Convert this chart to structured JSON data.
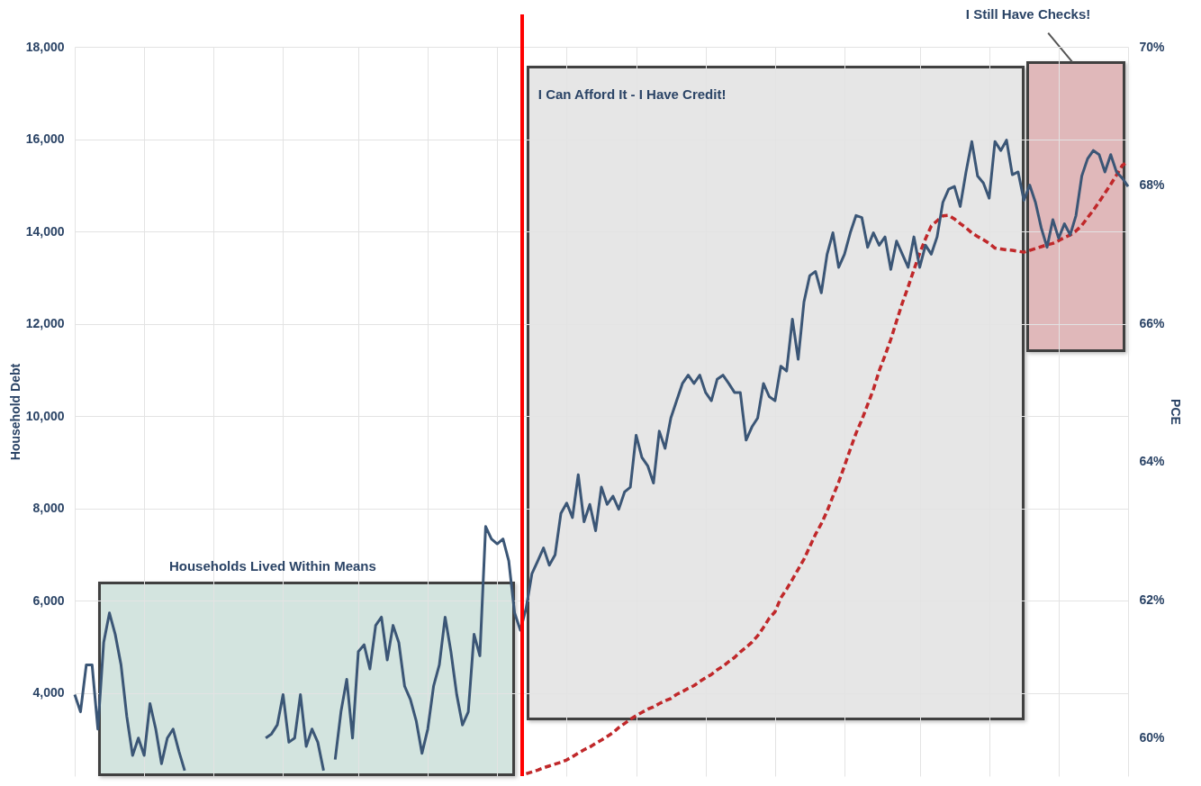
{
  "chart_data": {
    "type": "line",
    "ylabel": "Household Debt",
    "y2label": "PCE",
    "annotations": [
      "Households Lived Within Means",
      "I Can Afford It - I Have Credit!",
      "I Still Have Checks!"
    ],
    "categories": [
      null,
      null,
      null,
      null,
      null,
      null,
      null,
      null,
      null,
      null,
      null,
      null,
      null,
      null,
      null,
      null,
      null,
      null,
      null,
      null,
      null,
      null,
      null,
      null,
      null,
      null,
      null,
      null,
      null,
      null,
      null,
      null,
      null,
      null,
      null,
      null,
      null,
      null,
      null,
      null,
      null,
      null,
      null,
      null,
      null,
      null,
      null,
      null,
      null,
      null,
      null,
      null,
      null,
      null,
      null,
      null,
      null,
      null,
      null,
      null,
      null,
      null,
      null,
      null,
      null,
      null,
      null,
      null,
      null,
      null,
      null,
      null,
      null,
      null,
      null,
      null,
      null,
      null,
      null,
      null,
      null,
      null,
      null,
      null,
      null,
      null,
      null,
      null,
      null,
      null,
      null,
      null,
      null,
      null,
      null,
      null,
      null,
      null,
      null,
      null,
      null,
      null,
      null,
      null,
      null,
      null,
      null,
      null,
      null,
      null,
      null,
      null,
      null,
      null,
      null,
      null,
      null,
      null,
      null,
      null,
      null,
      null,
      null,
      null,
      null,
      null,
      null,
      null,
      null,
      null,
      null,
      null,
      null,
      null,
      null,
      null,
      null,
      null,
      null,
      null,
      null,
      null,
      null,
      null,
      null,
      null,
      null,
      null,
      null,
      null,
      null,
      null,
      null,
      null,
      null,
      null,
      null,
      null,
      null,
      null,
      null,
      null,
      null,
      null,
      null,
      null,
      null,
      null,
      null,
      null,
      null,
      null,
      null,
      null,
      null,
      null,
      null,
      null,
      null,
      null,
      null,
      null,
      null
    ],
    "ylim": [
      2200,
      18000
    ],
    "yticks": [
      {
        "value": 4000,
        "label": "4,000"
      },
      {
        "value": 6000,
        "label": "6,000"
      },
      {
        "value": 8000,
        "label": "8,000"
      },
      {
        "value": 10000,
        "label": "10,000"
      },
      {
        "value": 12000,
        "label": "12,000"
      },
      {
        "value": 14000,
        "label": "14,000"
      },
      {
        "value": 16000,
        "label": "16,000"
      },
      {
        "value": 18000,
        "label": "18,000"
      }
    ],
    "y2lim": [
      59.45,
      70
    ],
    "y2ticks": [
      {
        "value": 60,
        "label": "60%"
      },
      {
        "value": 62,
        "label": "62%"
      },
      {
        "value": 64,
        "label": "64%"
      },
      {
        "value": 66,
        "label": "66%"
      },
      {
        "value": 68,
        "label": "68%"
      },
      {
        "value": 70,
        "label": "70%"
      }
    ],
    "grid": true,
    "tick_labels": "y",
    "marker": "none",
    "series": [
      {
        "color": "#c0282a",
        "line_style": "dashed",
        "values": [
          null,
          null,
          null,
          null,
          null,
          null,
          null,
          null,
          null,
          null,
          null,
          null,
          null,
          null,
          null,
          null,
          null,
          null,
          null,
          null,
          null,
          null,
          null,
          null,
          null,
          null,
          null,
          null,
          null,
          null,
          null,
          null,
          null,
          null,
          null,
          null,
          null,
          null,
          null,
          null,
          null,
          null,
          null,
          null,
          null,
          null,
          null,
          null,
          null,
          null,
          null,
          null,
          null,
          null,
          null,
          null,
          null,
          null,
          null,
          null,
          null,
          null,
          null,
          null,
          null,
          null,
          null,
          null,
          null,
          null,
          null,
          null,
          null,
          null,
          null,
          null,
          null,
          null,
          2250,
          2290,
          2330,
          2380,
          2420,
          2460,
          2500,
          2550,
          2620,
          2700,
          2770,
          2830,
          2910,
          2980,
          3060,
          3140,
          3250,
          3340,
          3430,
          3510,
          3580,
          3650,
          3700,
          3770,
          3830,
          3880,
          3970,
          4030,
          4100,
          4160,
          4250,
          4330,
          4400,
          4500,
          4580,
          4680,
          4770,
          4890,
          4990,
          5100,
          5240,
          5420,
          5620,
          5760,
          6060,
          6250,
          6460,
          6680,
          6900,
          7170,
          7440,
          7670,
          7940,
          8260,
          8570,
          8920,
          9280,
          9630,
          9920,
          10250,
          10580,
          10980,
          11310,
          11660,
          12060,
          12450,
          12800,
          13170,
          13530,
          13840,
          14120,
          14230,
          14340,
          14350,
          14270,
          14170,
          14080,
          13970,
          13890,
          13820,
          13740,
          13640,
          13620,
          13600,
          13590,
          13570,
          13550,
          13590,
          13630,
          13670,
          13710,
          13740,
          13800,
          13870,
          13920,
          14010,
          14130,
          14300,
          14460,
          14640,
          14830,
          15020,
          15220,
          15430,
          15520
        ]
      },
      {
        "axis": "y2",
        "color": "#3b5676",
        "line_style": "solid",
        "values": [
          60.63,
          60.38,
          61.06,
          61.06,
          60.13,
          61.38,
          61.81,
          61.5,
          61.06,
          60.31,
          59.75,
          60.0,
          59.75,
          60.5,
          60.13,
          59.63,
          60.0,
          60.13,
          59.81,
          59.53,
          null,
          null,
          null,
          null,
          null,
          null,
          null,
          null,
          null,
          null,
          null,
          null,
          null,
          null,
          null,
          null,
          null,
          null,
          null,
          null,
          null,
          null,
          null,
          null,
          null,
          null,
          null,
          null,
          null,
          null,
          null,
          null,
          null,
          null,
          null,
          null,
          null,
          null,
          null,
          null,
          null,
          null,
          null,
          null,
          null,
          null,
          null,
          null,
          null,
          null,
          null,
          null,
          null,
          null,
          null,
          null,
          null,
          null,
          null,
          null,
          null,
          null,
          null,
          null,
          null,
          null,
          null,
          null,
          null,
          null,
          null,
          null,
          null,
          null,
          null,
          null,
          null,
          null,
          null,
          null,
          null,
          null,
          null,
          null,
          null,
          null,
          null,
          null,
          null,
          null,
          null,
          null,
          null,
          null,
          null,
          null,
          null,
          null,
          null,
          null,
          null,
          null,
          null,
          null,
          null,
          null,
          null,
          null,
          null,
          null,
          null,
          null,
          null,
          null,
          null,
          null,
          null,
          null,
          null,
          null,
          null,
          null,
          null,
          null,
          null,
          null,
          null,
          null,
          null,
          null,
          null,
          null,
          null,
          null,
          null,
          null,
          null,
          null,
          null,
          null,
          null,
          null,
          null,
          null,
          null,
          null,
          null,
          null,
          null,
          null,
          null,
          null,
          null,
          null,
          null,
          null,
          null,
          null,
          null,
          null,
          null,
          null,
          null
        ]
      },
      {
        "axis": "y2",
        "color": "#3b5676",
        "line_style": "solid",
        "values": [
          null,
          null,
          null,
          null,
          null,
          null,
          null,
          null,
          null,
          null,
          null,
          null,
          null,
          null,
          null,
          null,
          null,
          null,
          null,
          null,
          null,
          null,
          null,
          null,
          null,
          null,
          null,
          null,
          null,
          null,
          null,
          null,
          null,
          60.0,
          60.06,
          60.19,
          60.63,
          59.94,
          60.0,
          60.63,
          59.88,
          60.13,
          59.94,
          59.53,
          null,
          null,
          null,
          null,
          null,
          null,
          null,
          null,
          null,
          null,
          null,
          null,
          null,
          null,
          null,
          null,
          null,
          null,
          null,
          null,
          null,
          null,
          null,
          null,
          null,
          null,
          null,
          null,
          null,
          null,
          null,
          null,
          null,
          null,
          null,
          null,
          null,
          null,
          null,
          null,
          null,
          null,
          null,
          null,
          null,
          null,
          null,
          null,
          null,
          null,
          null,
          null,
          null,
          null,
          null,
          null,
          null,
          null,
          null,
          null,
          null,
          null,
          null,
          null,
          null,
          null,
          null,
          null,
          null,
          null,
          null,
          null,
          null,
          null,
          null,
          null,
          null,
          null,
          null,
          null,
          null,
          null,
          null,
          null,
          null,
          null,
          null,
          null,
          null,
          null,
          null,
          null,
          null,
          null,
          null,
          null,
          null,
          null,
          null,
          null,
          null,
          null,
          null,
          null,
          null,
          null,
          null,
          null,
          null,
          null,
          null,
          null,
          null,
          null,
          null,
          null,
          null,
          null,
          null,
          null,
          null,
          null,
          null,
          null,
          null,
          null,
          null,
          null,
          null,
          null,
          null,
          null,
          null,
          null,
          null,
          null,
          null,
          null,
          null
        ]
      },
      {
        "axis": "y2",
        "color": "#3b5676",
        "line_style": "solid",
        "values": [
          null,
          null,
          null,
          null,
          null,
          null,
          null,
          null,
          null,
          null,
          null,
          null,
          null,
          null,
          null,
          null,
          null,
          null,
          null,
          null,
          null,
          null,
          null,
          null,
          null,
          null,
          null,
          null,
          null,
          null,
          null,
          null,
          null,
          null,
          null,
          null,
          null,
          null,
          null,
          null,
          null,
          null,
          null,
          null,
          null,
          59.69,
          60.38,
          60.85,
          60.0,
          61.25,
          61.35,
          61.0,
          61.63,
          61.75,
          61.13,
          61.63,
          61.38,
          60.75,
          60.56,
          60.25,
          59.78,
          60.13,
          60.75,
          61.06,
          61.75,
          61.25,
          60.63,
          60.19,
          60.38,
          61.5,
          61.19,
          63.06,
          62.88,
          62.81,
          62.88,
          62.56,
          61.81,
          61.56,
          61.88,
          62.38,
          62.56,
          62.75,
          62.5,
          62.65,
          63.25,
          63.4,
          63.19,
          63.81,
          63.13,
          63.38,
          63.0,
          63.63,
          63.38,
          63.5,
          63.31,
          63.56,
          63.63,
          64.38,
          64.06,
          63.94,
          63.69,
          64.44,
          64.19,
          64.63,
          64.88,
          65.13,
          65.25,
          65.13,
          65.25,
          65.0,
          64.88,
          65.19,
          65.25,
          65.13,
          65.0,
          65.0,
          64.31,
          64.5,
          64.63,
          65.13,
          64.94,
          64.88,
          65.38,
          65.31,
          66.06,
          65.48,
          66.31,
          66.69,
          66.75,
          66.44,
          67.0,
          67.31,
          66.81,
          67.0,
          67.31,
          67.56,
          67.53,
          67.1,
          67.31,
          67.13,
          67.25,
          66.78,
          67.19,
          67.0,
          66.81,
          67.25,
          66.81,
          67.13,
          67.0,
          67.25,
          67.75,
          67.94,
          67.98,
          67.69,
          68.19,
          68.63,
          68.13,
          68.03,
          67.81,
          68.63,
          68.5,
          68.65,
          68.15,
          68.19,
          67.78,
          68.0,
          67.75,
          67.38,
          67.1,
          67.5,
          67.23,
          67.44,
          67.28,
          67.56,
          68.13,
          68.38,
          68.5,
          68.44,
          68.19,
          68.44,
          68.19,
          68.1,
          67.98
        ]
      }
    ]
  }
}
